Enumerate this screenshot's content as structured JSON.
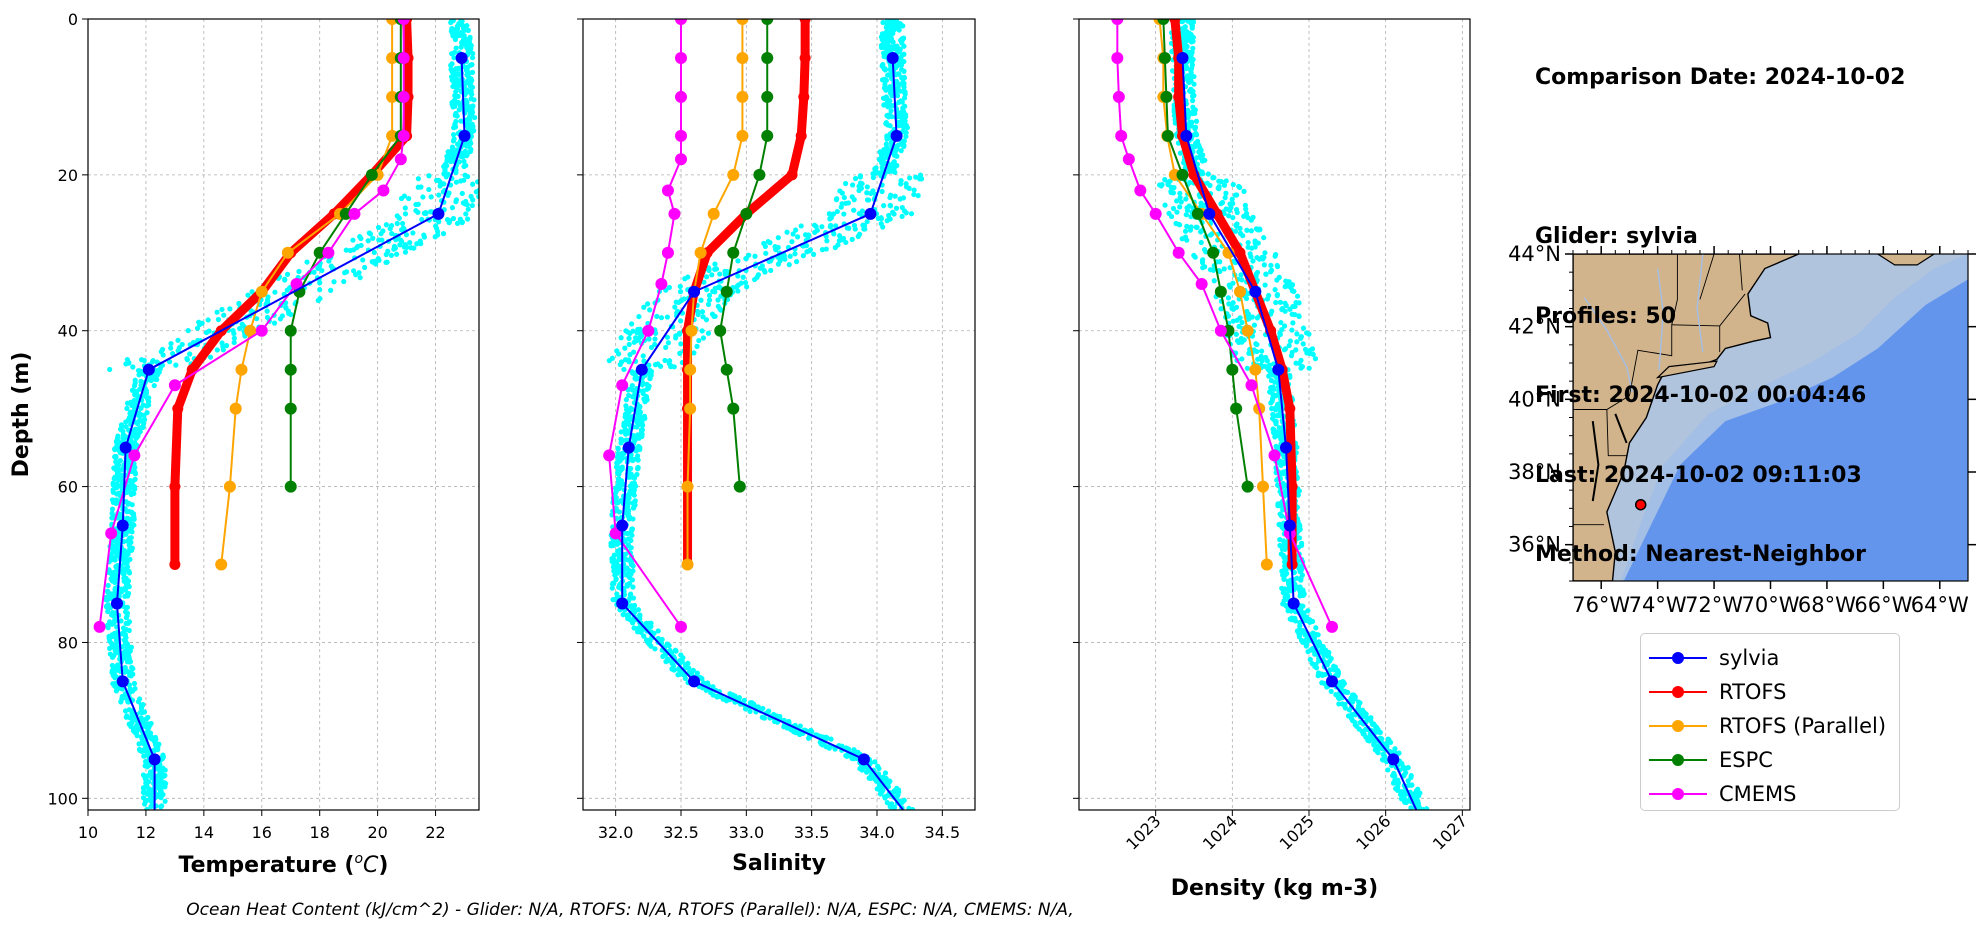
{
  "info": {
    "date_line": "Comparison Date: 2024-10-02",
    "glider_line": "Glider: sylvia",
    "profiles_line": "Profiles: 50",
    "first_line": "First: 2024-10-02 00:04:46",
    "last_line": "Last: 2024-10-02 09:11:03",
    "method_line": "Method: Nearest-Neighbor"
  },
  "footer_text": "Ocean Heat Content (kJ/cm^2) - Glider: N/A,  RTOFS: N/A,  RTOFS (Parallel): N/A,  ESPC: N/A,  CMEMS: N/A,",
  "colors": {
    "sylvia": "#0000ff",
    "RTOFS": "#ff0000",
    "RTOFS (Parallel)": "#ffa500",
    "ESPC": "#008000",
    "CMEMS": "#ff00ff",
    "raw": "#00ffff",
    "land": "#d2b48c",
    "shelf": "#b0c4de",
    "slope": "#a4bfe6",
    "deep": "#6495ed",
    "gridline": "#b0b0b0"
  },
  "legend": [
    {
      "label": "sylvia",
      "color": "#0000ff"
    },
    {
      "label": "RTOFS",
      "color": "#ff0000"
    },
    {
      "label": "RTOFS (Parallel)",
      "color": "#ffa500"
    },
    {
      "label": "ESPC",
      "color": "#008000"
    },
    {
      "label": "CMEMS",
      "color": "#ff00ff"
    }
  ],
  "map": {
    "lat_ticks": [
      "44°N",
      "42°N",
      "40°N",
      "38°N",
      "36°N"
    ],
    "lon_ticks": [
      "76°W",
      "74°W",
      "72°W",
      "70°W",
      "68°W",
      "66°W",
      "64°W"
    ],
    "lon_range": [
      -77,
      -63
    ],
    "lat_range": [
      35,
      44
    ],
    "glider_location": {
      "lon": -74.6,
      "lat": 37.1
    }
  },
  "chart_data": [
    {
      "type": "line",
      "xlabel": "Temperature ($^oC$)",
      "xlabel_main": "Temperature (",
      "xlabel_sup": "o",
      "xlabel_var": "C",
      "xlabel_end": ")",
      "ylabel": "Depth (m)",
      "xlim": [
        10,
        23.5
      ],
      "ylim": [
        101.5,
        0
      ],
      "xticks": [
        10,
        12,
        14,
        16,
        18,
        20,
        22
      ],
      "yticks": [
        0,
        20,
        40,
        60,
        80,
        100
      ],
      "grid": true,
      "series": [
        {
          "name": "RTOFS",
          "depth": [
            0,
            5,
            10,
            15,
            20,
            25,
            30,
            35,
            40,
            45,
            50,
            60,
            70
          ],
          "values": [
            21.0,
            21.05,
            21.05,
            21.0,
            19.8,
            18.5,
            17.0,
            16.0,
            14.6,
            13.6,
            13.1,
            13.0,
            13.0
          ]
        },
        {
          "name": "RTOFS (Parallel)",
          "depth": [
            0,
            5,
            10,
            15,
            20,
            25,
            30,
            35,
            40,
            45,
            50,
            60,
            70
          ],
          "values": [
            20.5,
            20.5,
            20.5,
            20.5,
            20.0,
            18.7,
            16.9,
            16.0,
            15.6,
            15.3,
            15.1,
            14.9,
            14.6
          ]
        },
        {
          "name": "ESPC",
          "depth": [
            0,
            5,
            10,
            15,
            20,
            25,
            30,
            35,
            40,
            45,
            50,
            60
          ],
          "values": [
            20.8,
            20.8,
            20.8,
            20.8,
            19.8,
            18.9,
            18.0,
            17.3,
            17.0,
            17.0,
            17.0,
            17.0
          ]
        },
        {
          "name": "CMEMS",
          "depth": [
            0,
            5,
            10,
            15,
            18,
            22,
            25,
            30,
            34,
            40,
            47,
            56,
            66,
            78
          ],
          "values": [
            20.9,
            20.9,
            20.9,
            20.9,
            20.8,
            20.2,
            19.2,
            18.3,
            17.2,
            16.0,
            13.0,
            11.6,
            10.8,
            10.4
          ]
        },
        {
          "name": "sylvia",
          "depth": [
            5,
            15,
            25,
            45,
            55,
            65,
            75,
            85,
            95,
            101.5
          ],
          "values": [
            22.9,
            23.0,
            22.1,
            12.1,
            11.3,
            11.2,
            11.0,
            11.2,
            12.3,
            12.3
          ]
        }
      ]
    },
    {
      "type": "line",
      "xlabel": "Salinity",
      "xlim": [
        31.75,
        34.75
      ],
      "ylim": [
        101.5,
        0
      ],
      "xticks": [
        32.0,
        32.5,
        33.0,
        33.5,
        34.0,
        34.5
      ],
      "xtick_labels": [
        "32.0",
        "32.5",
        "33.0",
        "33.5",
        "34.0",
        "34.5"
      ],
      "yticks": [
        0,
        20,
        40,
        60,
        80,
        100
      ],
      "grid": true,
      "series": [
        {
          "name": "RTOFS",
          "depth": [
            0,
            5,
            10,
            15,
            20,
            25,
            30,
            35,
            40,
            45,
            50,
            60,
            70
          ],
          "values": [
            33.45,
            33.45,
            33.44,
            33.42,
            33.35,
            33.0,
            32.7,
            32.6,
            32.55,
            32.55,
            32.55,
            32.55,
            32.55
          ]
        },
        {
          "name": "RTOFS (Parallel)",
          "depth": [
            0,
            5,
            10,
            15,
            20,
            25,
            30,
            35,
            40,
            45,
            50,
            60,
            70
          ],
          "values": [
            32.97,
            32.97,
            32.97,
            32.97,
            32.9,
            32.75,
            32.65,
            32.6,
            32.58,
            32.57,
            32.57,
            32.55,
            32.55
          ]
        },
        {
          "name": "ESPC",
          "depth": [
            0,
            5,
            10,
            15,
            20,
            25,
            30,
            35,
            40,
            45,
            50,
            60
          ],
          "values": [
            33.16,
            33.16,
            33.16,
            33.16,
            33.1,
            33.0,
            32.9,
            32.85,
            32.8,
            32.85,
            32.9,
            32.95
          ]
        },
        {
          "name": "CMEMS",
          "depth": [
            0,
            5,
            10,
            15,
            18,
            22,
            25,
            30,
            34,
            40,
            47,
            56,
            66,
            78
          ],
          "values": [
            32.5,
            32.5,
            32.5,
            32.5,
            32.5,
            32.4,
            32.45,
            32.4,
            32.35,
            32.25,
            32.05,
            31.95,
            32.0,
            32.5
          ]
        },
        {
          "name": "sylvia",
          "depth": [
            5,
            15,
            25,
            35,
            45,
            55,
            65,
            75,
            85,
            95,
            101.5
          ],
          "values": [
            34.12,
            34.15,
            33.95,
            32.6,
            32.2,
            32.1,
            32.05,
            32.05,
            32.6,
            33.9,
            34.2
          ]
        }
      ]
    },
    {
      "type": "line",
      "xlabel": "Density (kg m-3)",
      "xlim": [
        1022.0,
        1027.1
      ],
      "ylim": [
        101.5,
        0
      ],
      "xticks": [
        1023,
        1024,
        1025,
        1026,
        1027
      ],
      "xtick_labels": [
        "1023",
        "1024",
        "1025",
        "1026",
        "1027"
      ],
      "yticks": [
        0,
        20,
        40,
        60,
        80,
        100
      ],
      "grid": true,
      "series": [
        {
          "name": "RTOFS",
          "depth": [
            0,
            5,
            10,
            15,
            20,
            25,
            30,
            35,
            40,
            45,
            50,
            60,
            70
          ],
          "values": [
            1023.25,
            1023.3,
            1023.3,
            1023.35,
            1023.5,
            1023.8,
            1024.1,
            1024.3,
            1024.5,
            1024.65,
            1024.75,
            1024.78,
            1024.78
          ]
        },
        {
          "name": "RTOFS (Parallel)",
          "depth": [
            0,
            5,
            10,
            15,
            20,
            25,
            30,
            35,
            40,
            45,
            50,
            60,
            70
          ],
          "values": [
            1023.05,
            1023.1,
            1023.1,
            1023.15,
            1023.25,
            1023.6,
            1023.95,
            1024.1,
            1024.2,
            1024.3,
            1024.35,
            1024.4,
            1024.45
          ]
        },
        {
          "name": "ESPC",
          "depth": [
            0,
            5,
            10,
            15,
            20,
            25,
            30,
            35,
            40,
            45,
            50,
            60
          ],
          "values": [
            1023.1,
            1023.12,
            1023.14,
            1023.16,
            1023.35,
            1023.55,
            1023.75,
            1023.85,
            1023.95,
            1024.0,
            1024.05,
            1024.2
          ]
        },
        {
          "name": "CMEMS",
          "depth": [
            0,
            5,
            10,
            15,
            18,
            22,
            25,
            30,
            34,
            40,
            47,
            56,
            66,
            78
          ],
          "values": [
            1022.5,
            1022.5,
            1022.52,
            1022.55,
            1022.65,
            1022.8,
            1023.0,
            1023.3,
            1023.6,
            1023.85,
            1024.25,
            1024.55,
            1024.75,
            1025.3
          ]
        },
        {
          "name": "sylvia",
          "depth": [
            5,
            15,
            25,
            35,
            45,
            55,
            65,
            75,
            85,
            95,
            101.5
          ],
          "values": [
            1023.35,
            1023.4,
            1023.7,
            1024.3,
            1024.6,
            1024.7,
            1024.75,
            1024.8,
            1025.3,
            1026.1,
            1026.4
          ]
        }
      ]
    }
  ]
}
